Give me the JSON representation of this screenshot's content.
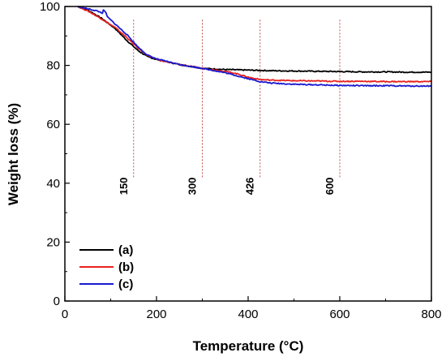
{
  "chart_data": {
    "type": "line",
    "xlabel": "Temperature (°C)",
    "ylabel": "Weight loss (%)",
    "xlim": [
      0,
      800
    ],
    "ylim": [
      0,
      100
    ],
    "x_ticks": [
      0,
      200,
      400,
      600,
      800
    ],
    "y_ticks": [
      0,
      20,
      40,
      60,
      80,
      100
    ],
    "grid": false,
    "legend_position": "bottom-left",
    "annotations": [
      {
        "x": 150,
        "label": "150",
        "color": "#c0504d"
      },
      {
        "x": 300,
        "label": "300",
        "color": "#c0504d"
      },
      {
        "x": 426,
        "label": "426",
        "color": "#c0504d"
      },
      {
        "x": 600,
        "label": "600",
        "color": "#c0504d"
      }
    ],
    "series": [
      {
        "name": "(a)",
        "color": "#000000",
        "x": [
          28,
          50,
          80,
          110,
          135,
          160,
          180,
          200,
          250,
          300,
          350,
          400,
          450,
          500,
          550,
          600,
          650,
          700,
          750,
          800
        ],
        "y": [
          100,
          98.8,
          96,
          92.5,
          88.5,
          85,
          83,
          82,
          80.3,
          79,
          78.6,
          78.4,
          78.2,
          78.1,
          78.0,
          77.9,
          77.8,
          77.8,
          77.7,
          77.7
        ]
      },
      {
        "name": "(b)",
        "color": "#e8221f",
        "x": [
          28,
          50,
          80,
          110,
          135,
          160,
          180,
          200,
          250,
          300,
          350,
          380,
          400,
          426,
          450,
          500,
          550,
          600,
          650,
          700,
          750,
          800
        ],
        "y": [
          100,
          98.5,
          95.8,
          92.8,
          89.5,
          85.8,
          83.5,
          82,
          80.3,
          79,
          78,
          77,
          76,
          75.2,
          75,
          74.8,
          74.7,
          74.6,
          74.6,
          74.5,
          74.5,
          74.5
        ]
      },
      {
        "name": "(c)",
        "color": "#1a1ad0",
        "x": [
          28,
          50,
          70,
          85,
          110,
          135,
          160,
          180,
          200,
          250,
          300,
          350,
          400,
          426,
          450,
          500,
          550,
          600,
          650,
          700,
          750,
          800
        ],
        "y": [
          100,
          99.2,
          98.5,
          97.6,
          94,
          90.5,
          86.2,
          83.5,
          82.2,
          80.3,
          79,
          77.5,
          75.5,
          74.5,
          74,
          73.6,
          73.4,
          73.2,
          73.1,
          73.1,
          73.0,
          73.0
        ]
      }
    ]
  }
}
